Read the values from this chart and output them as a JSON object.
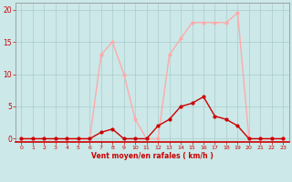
{
  "x": [
    0,
    1,
    2,
    3,
    4,
    5,
    6,
    7,
    8,
    9,
    10,
    11,
    12,
    13,
    14,
    15,
    16,
    17,
    18,
    19,
    20,
    21,
    22,
    23
  ],
  "rafales": [
    0,
    0,
    0,
    0,
    0,
    0,
    0,
    13,
    15,
    10,
    3,
    0,
    0,
    13,
    15.5,
    18,
    18,
    18,
    18,
    19.5,
    0,
    0,
    0,
    0
  ],
  "vent_moyen": [
    0,
    0,
    0,
    0,
    0,
    0,
    0,
    1,
    1.5,
    0,
    0,
    0,
    2,
    3,
    5,
    5.5,
    6.5,
    3.5,
    3,
    2,
    0,
    0,
    0,
    0
  ],
  "bg_color": "#cce8e8",
  "grid_color": "#aacccc",
  "line_color_rafales": "#ffaaaa",
  "line_color_vent": "#cc0000",
  "marker_color_rafales": "#ffaaaa",
  "marker_color_vent": "#cc0000",
  "xlabel": "Vent moyen/en rafales ( km/h )",
  "xlabel_color": "#cc0000",
  "tick_color": "#cc0000",
  "yticks": [
    0,
    5,
    10,
    15,
    20
  ],
  "xticks": [
    0,
    1,
    2,
    3,
    4,
    5,
    6,
    7,
    8,
    9,
    10,
    11,
    12,
    13,
    14,
    15,
    16,
    17,
    18,
    19,
    20,
    21,
    22,
    23
  ],
  "ylim": [
    -0.5,
    21
  ],
  "xlim": [
    -0.5,
    23.5
  ],
  "arrow_color": "#cc0000",
  "spine_color": "#888888",
  "bottom_line_color": "#cc0000"
}
